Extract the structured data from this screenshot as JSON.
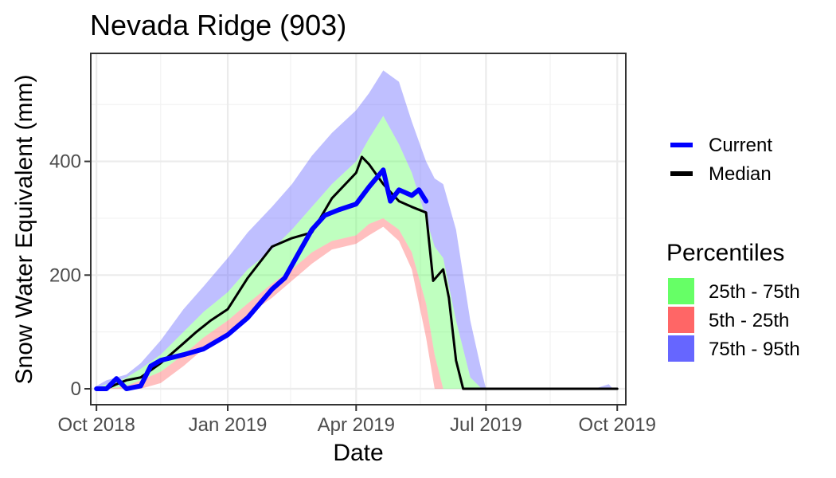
{
  "chart_data": {
    "type": "area",
    "title": "Nevada Ridge (903)",
    "xlabel": "Date",
    "ylabel": "Snow Water Equivalent (mm)",
    "x_ticks": [
      "Oct 2018",
      "Jan 2019",
      "Apr 2019",
      "Jul 2019",
      "Oct 2019"
    ],
    "y_ticks": [
      0,
      200,
      400
    ],
    "xlim": [
      "2018-09-27",
      "2019-10-07"
    ],
    "ylim": [
      -28,
      590
    ],
    "grid": true,
    "legend_position": "right",
    "colors": {
      "current": "#0000ff",
      "median": "#000000",
      "p25_75": "#66ff66",
      "p5_25": "#ff6666",
      "p75_95": "#6666ff"
    },
    "legend": {
      "lines": [
        {
          "key": "current",
          "label": "Current"
        },
        {
          "key": "median",
          "label": "Median"
        }
      ],
      "fill_title": "Percentiles",
      "fills": [
        {
          "key": "p25_75",
          "label": "25th - 75th"
        },
        {
          "key": "p5_25",
          "label": "5th - 25th"
        },
        {
          "key": "p75_95",
          "label": "75th - 95th"
        }
      ]
    },
    "percentiles": {
      "dates": [
        "2018-10-01",
        "2018-10-08",
        "2018-10-15",
        "2018-10-22",
        "2018-11-01",
        "2018-11-15",
        "2018-12-01",
        "2018-12-15",
        "2019-01-01",
        "2019-01-15",
        "2019-02-01",
        "2019-02-15",
        "2019-03-01",
        "2019-03-15",
        "2019-04-01",
        "2019-04-10",
        "2019-04-20",
        "2019-05-01",
        "2019-05-10",
        "2019-05-20",
        "2019-05-26",
        "2019-06-01",
        "2019-06-10",
        "2019-06-20",
        "2019-06-28",
        "2019-07-01",
        "2019-07-10",
        "2019-08-01",
        "2019-09-15",
        "2019-09-25",
        "2019-09-28",
        "2019-10-01"
      ],
      "p5": [
        0,
        0,
        0,
        0,
        0,
        10,
        40,
        70,
        100,
        130,
        160,
        190,
        220,
        245,
        255,
        270,
        285,
        260,
        210,
        90,
        0,
        0,
        0,
        0,
        0,
        0,
        0,
        0,
        0,
        0,
        0,
        0
      ],
      "p25": [
        0,
        0,
        2,
        5,
        15,
        30,
        60,
        90,
        120,
        150,
        185,
        210,
        240,
        260,
        270,
        290,
        300,
        280,
        240,
        150,
        60,
        0,
        0,
        0,
        0,
        0,
        0,
        0,
        0,
        0,
        0,
        0
      ],
      "p75": [
        2,
        8,
        12,
        20,
        35,
        60,
        100,
        135,
        170,
        210,
        245,
        280,
        320,
        360,
        400,
        440,
        480,
        430,
        380,
        300,
        250,
        230,
        120,
        20,
        0,
        0,
        0,
        0,
        0,
        0,
        0,
        0
      ],
      "p95": [
        5,
        15,
        20,
        25,
        45,
        85,
        140,
        180,
        230,
        275,
        320,
        360,
        410,
        450,
        490,
        520,
        560,
        540,
        470,
        400,
        370,
        360,
        280,
        120,
        30,
        0,
        0,
        0,
        0,
        8,
        0,
        0
      ]
    },
    "median": {
      "dates": [
        "2018-10-01",
        "2018-10-08",
        "2018-10-15",
        "2018-10-22",
        "2018-11-01",
        "2018-11-15",
        "2018-12-01",
        "2018-12-10",
        "2018-12-20",
        "2019-01-01",
        "2019-01-15",
        "2019-02-01",
        "2019-02-15",
        "2019-03-01",
        "2019-03-15",
        "2019-04-01",
        "2019-04-05",
        "2019-04-10",
        "2019-04-20",
        "2019-05-01",
        "2019-05-10",
        "2019-05-20",
        "2019-05-25",
        "2019-06-01",
        "2019-06-05",
        "2019-06-10",
        "2019-06-15",
        "2019-06-20",
        "2019-10-01"
      ],
      "values": [
        0,
        0,
        8,
        15,
        20,
        45,
        80,
        100,
        120,
        140,
        195,
        250,
        265,
        275,
        335,
        380,
        408,
        395,
        360,
        330,
        320,
        310,
        190,
        210,
        160,
        50,
        0,
        0,
        0
      ]
    },
    "current": {
      "dates": [
        "2018-10-01",
        "2018-10-08",
        "2018-10-15",
        "2018-10-22",
        "2018-11-01",
        "2018-11-08",
        "2018-11-15",
        "2018-12-01",
        "2018-12-15",
        "2019-01-01",
        "2019-01-15",
        "2019-02-01",
        "2019-02-10",
        "2019-02-20",
        "2019-03-01",
        "2019-03-10",
        "2019-03-20",
        "2019-04-01",
        "2019-04-10",
        "2019-04-20",
        "2019-04-25",
        "2019-05-01",
        "2019-05-10",
        "2019-05-15",
        "2019-05-20"
      ],
      "values": [
        0,
        0,
        18,
        0,
        5,
        40,
        50,
        60,
        70,
        95,
        125,
        175,
        195,
        240,
        280,
        305,
        315,
        325,
        355,
        385,
        330,
        350,
        340,
        350,
        330
      ]
    }
  }
}
